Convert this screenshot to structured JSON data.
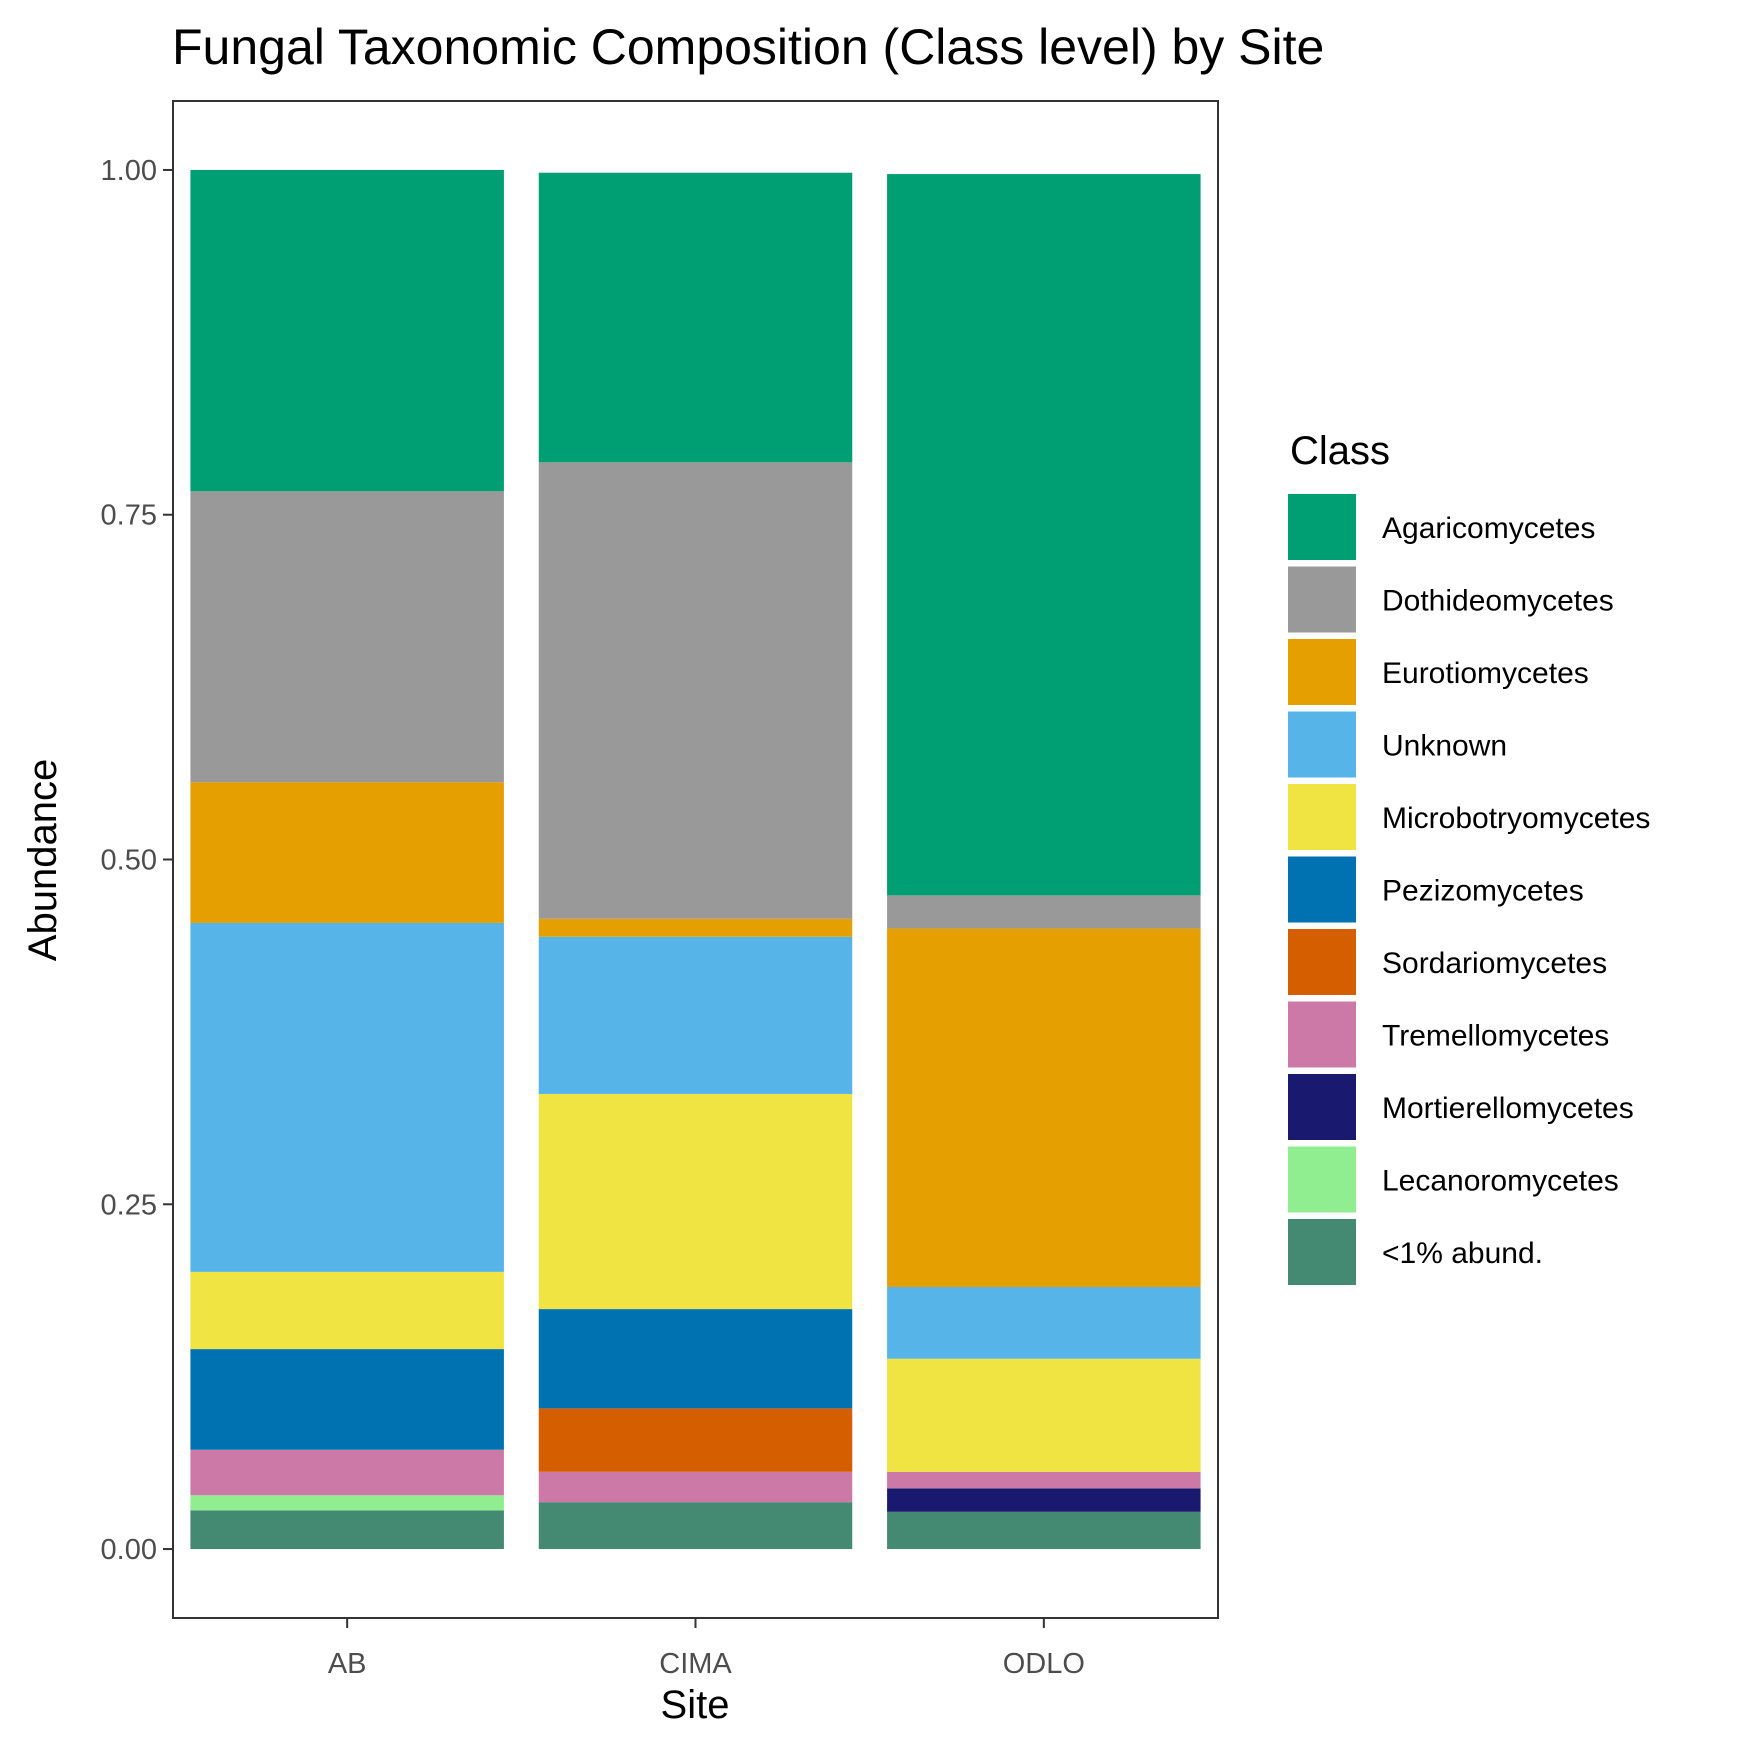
{
  "chart_data": {
    "type": "bar",
    "stacked": true,
    "title": "Fungal Taxonomic Composition (Class level) by Site",
    "xlabel": "Site",
    "ylabel": "Abundance",
    "categories": [
      "AB",
      "CIMA",
      "ODLO"
    ],
    "ylim": [
      -0.05,
      1.05
    ],
    "yticks": [
      0.0,
      0.25,
      0.5,
      0.75,
      1.0
    ],
    "ytick_labels": [
      "0.00",
      "0.25",
      "0.50",
      "0.75",
      "1.00"
    ],
    "grid": false,
    "legend": {
      "title": "Class",
      "position": "right"
    },
    "series": [
      {
        "name": "<1% abund.",
        "color": "#448A73",
        "values": [
          0.028,
          0.034,
          0.027
        ]
      },
      {
        "name": "Lecanoromycetes",
        "color": "#90EE90",
        "values": [
          0.011,
          0.0,
          0.0
        ]
      },
      {
        "name": "Mortierellomycetes",
        "color": "#191970",
        "values": [
          0.0,
          0.0,
          0.017
        ]
      },
      {
        "name": "Tremellomycetes",
        "color": "#CC79A7",
        "values": [
          0.033,
          0.022,
          0.012
        ]
      },
      {
        "name": "Sordariomycetes",
        "color": "#D55E00",
        "values": [
          0.0,
          0.046,
          0.0
        ]
      },
      {
        "name": "Pezizomycetes",
        "color": "#0072B2",
        "values": [
          0.073,
          0.072,
          0.0
        ]
      },
      {
        "name": "Microbotryomycetes",
        "color": "#F0E442",
        "values": [
          0.056,
          0.156,
          0.082
        ]
      },
      {
        "name": "Unknown",
        "color": "#56B4E9",
        "values": [
          0.253,
          0.114,
          0.052
        ]
      },
      {
        "name": "Eurotiomycetes",
        "color": "#E69F00",
        "values": [
          0.102,
          0.013,
          0.26
        ]
      },
      {
        "name": "Dothideomycetes",
        "color": "#999999",
        "values": [
          0.211,
          0.331,
          0.024
        ]
      },
      {
        "name": "Agaricomycetes",
        "color": "#009E73",
        "values": [
          0.233,
          0.21,
          0.523
        ]
      }
    ],
    "legend_order": [
      "Agaricomycetes",
      "Dothideomycetes",
      "Eurotiomycetes",
      "Unknown",
      "Microbotryomycetes",
      "Pezizomycetes",
      "Sordariomycetes",
      "Tremellomycetes",
      "Mortierellomycetes",
      "Lecanoromycetes",
      "<1% abund."
    ]
  }
}
